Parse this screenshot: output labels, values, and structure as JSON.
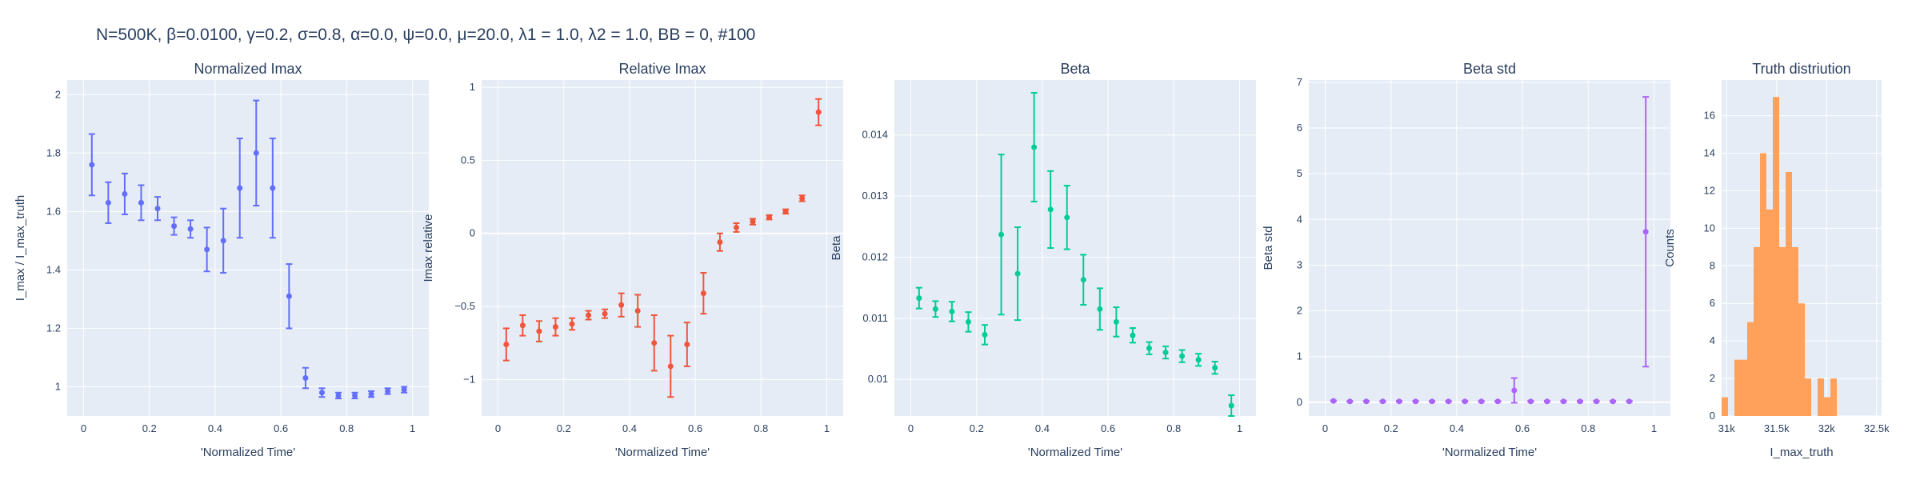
{
  "title": "N=500K, β=0.0100, γ=0.2, σ=0.8,  α=0.0, ψ=0.0, μ=20.0, λ1 = 1.0, λ2 = 1.0, BB = 0, #100",
  "chart_data": [
    {
      "type": "scatter",
      "title": "Normalized Imax",
      "xlabel": "'Normalized Time'",
      "ylabel": "I_max / I_max_truth",
      "color": "#636efa",
      "xlim": [
        -0.05,
        1.05
      ],
      "ylim": [
        0.9,
        2.05
      ],
      "xticks": [
        0,
        0.2,
        0.4,
        0.6,
        0.8,
        1
      ],
      "xtick_labels": [
        "0",
        "0.2",
        "0.4",
        "0.6",
        "0.8",
        "1"
      ],
      "yticks": [
        1,
        1.2,
        1.4,
        1.6,
        1.8,
        2
      ],
      "ytick_labels": [
        "1",
        "1.2",
        "1.4",
        "1.6",
        "1.8",
        "2"
      ],
      "x": [
        0.025,
        0.075,
        0.125,
        0.175,
        0.225,
        0.275,
        0.325,
        0.375,
        0.425,
        0.475,
        0.525,
        0.575,
        0.625,
        0.675,
        0.725,
        0.775,
        0.825,
        0.875,
        0.925,
        0.975
      ],
      "y": [
        1.76,
        1.63,
        1.66,
        1.63,
        1.61,
        1.55,
        1.54,
        1.47,
        1.5,
        1.68,
        1.8,
        1.68,
        1.31,
        1.03,
        0.98,
        0.97,
        0.97,
        0.975,
        0.985,
        0.99
      ],
      "err": [
        0.105,
        0.07,
        0.07,
        0.06,
        0.04,
        0.03,
        0.03,
        0.075,
        0.11,
        0.17,
        0.18,
        0.17,
        0.11,
        0.035,
        0.015,
        0.01,
        0.01,
        0.01,
        0.01,
        0.01
      ]
    },
    {
      "type": "scatter",
      "title": "Relative Imax",
      "xlabel": "'Normalized Time'",
      "ylabel": "Imax relative",
      "color": "#ef553b",
      "xlim": [
        -0.05,
        1.05
      ],
      "ylim": [
        -1.25,
        1.05
      ],
      "xticks": [
        0,
        0.2,
        0.4,
        0.6,
        0.8,
        1
      ],
      "xtick_labels": [
        "0",
        "0.2",
        "0.4",
        "0.6",
        "0.8",
        "1"
      ],
      "yticks": [
        -1,
        -0.5,
        0,
        0.5,
        1
      ],
      "ytick_labels": [
        "−1",
        "−0.5",
        "0",
        "0.5",
        "1"
      ],
      "x": [
        0.025,
        0.075,
        0.125,
        0.175,
        0.225,
        0.275,
        0.325,
        0.375,
        0.425,
        0.475,
        0.525,
        0.575,
        0.625,
        0.675,
        0.725,
        0.775,
        0.825,
        0.875,
        0.925,
        0.975
      ],
      "y": [
        -0.76,
        -0.63,
        -0.67,
        -0.64,
        -0.62,
        -0.56,
        -0.55,
        -0.49,
        -0.53,
        -0.75,
        -0.91,
        -0.76,
        -0.41,
        -0.06,
        0.04,
        0.08,
        0.11,
        0.15,
        0.24,
        0.83
      ],
      "err": [
        0.11,
        0.07,
        0.07,
        0.06,
        0.04,
        0.03,
        0.03,
        0.08,
        0.11,
        0.19,
        0.21,
        0.15,
        0.14,
        0.06,
        0.03,
        0.02,
        0.015,
        0.015,
        0.02,
        0.09
      ]
    },
    {
      "type": "scatter",
      "title": "Beta",
      "xlabel": "'Normalized Time'",
      "ylabel": "Beta",
      "color": "#00cc96",
      "xlim": [
        -0.05,
        1.05
      ],
      "ylim": [
        0.0094,
        0.0149
      ],
      "xticks": [
        0,
        0.2,
        0.4,
        0.6,
        0.8,
        1
      ],
      "xtick_labels": [
        "0",
        "0.2",
        "0.4",
        "0.6",
        "0.8",
        "1"
      ],
      "yticks": [
        0.01,
        0.011,
        0.012,
        0.013,
        0.014
      ],
      "ytick_labels": [
        "0.01",
        "0.011",
        "0.012",
        "0.013",
        "0.014"
      ],
      "x": [
        0.025,
        0.075,
        0.125,
        0.175,
        0.225,
        0.275,
        0.325,
        0.375,
        0.425,
        0.475,
        0.525,
        0.575,
        0.625,
        0.675,
        0.725,
        0.775,
        0.825,
        0.875,
        0.925,
        0.975
      ],
      "y": [
        0.01133,
        0.01115,
        0.01111,
        0.01094,
        0.01073,
        0.01237,
        0.01173,
        0.0138,
        0.01278,
        0.01265,
        0.01163,
        0.01115,
        0.01094,
        0.01072,
        0.01051,
        0.01044,
        0.01038,
        0.01032,
        0.01019,
        0.00957
      ],
      "err": [
        0.00017,
        0.00013,
        0.00016,
        0.00016,
        0.00016,
        0.00131,
        0.00076,
        0.00089,
        0.00063,
        0.00052,
        0.00041,
        0.00034,
        0.00024,
        0.00012,
        0.0001,
        0.0001,
        0.0001,
        0.0001,
        0.0001,
        0.00017
      ]
    },
    {
      "type": "scatter",
      "title": "Beta std",
      "xlabel": "'Normalized Time'",
      "ylabel": "Beta std",
      "color": "#ab63fa",
      "xlim": [
        -0.05,
        1.05
      ],
      "ylim": [
        -0.3,
        7.05
      ],
      "xticks": [
        0,
        0.2,
        0.4,
        0.6,
        0.8,
        1
      ],
      "xtick_labels": [
        "0",
        "0.2",
        "0.4",
        "0.6",
        "0.8",
        "1"
      ],
      "yticks": [
        0,
        1,
        2,
        3,
        4,
        5,
        6,
        7
      ],
      "ytick_labels": [
        "0",
        "1",
        "2",
        "3",
        "4",
        "5",
        "6",
        "7"
      ],
      "x": [
        0.025,
        0.075,
        0.125,
        0.175,
        0.225,
        0.275,
        0.325,
        0.375,
        0.425,
        0.475,
        0.525,
        0.575,
        0.625,
        0.675,
        0.725,
        0.775,
        0.825,
        0.875,
        0.925,
        0.975
      ],
      "y": [
        0.03,
        0.02,
        0.02,
        0.02,
        0.02,
        0.02,
        0.02,
        0.02,
        0.02,
        0.02,
        0.02,
        0.26,
        0.02,
        0.02,
        0.02,
        0.02,
        0.02,
        0.02,
        0.02,
        3.73
      ],
      "err": [
        0.01,
        0.01,
        0.01,
        0.01,
        0.01,
        0.01,
        0.01,
        0.01,
        0.01,
        0.01,
        0.01,
        0.27,
        0.01,
        0.01,
        0.01,
        0.01,
        0.01,
        0.01,
        0.01,
        2.95
      ]
    },
    {
      "type": "bar",
      "title": "Truth distriution",
      "xlabel": "I_max_truth",
      "ylabel": "Counts",
      "color": "#ffa15a",
      "xlim": [
        30950,
        32550
      ],
      "ylim": [
        0,
        17.9
      ],
      "xticks": [
        31000,
        31500,
        32000,
        32500
      ],
      "xtick_labels": [
        "31k",
        "31.5k",
        "32k",
        "32.5k"
      ],
      "yticks": [
        0,
        2,
        4,
        6,
        8,
        10,
        12,
        14,
        16
      ],
      "ytick_labels": [
        "0",
        "2",
        "4",
        "6",
        "8",
        "10",
        "12",
        "14",
        "16"
      ],
      "bin_start": 30950,
      "bin_width": 64,
      "values": [
        1,
        0,
        3,
        3,
        5,
        9,
        14,
        11,
        17,
        9,
        13,
        9,
        6,
        2,
        0,
        2,
        1,
        2
      ]
    }
  ]
}
